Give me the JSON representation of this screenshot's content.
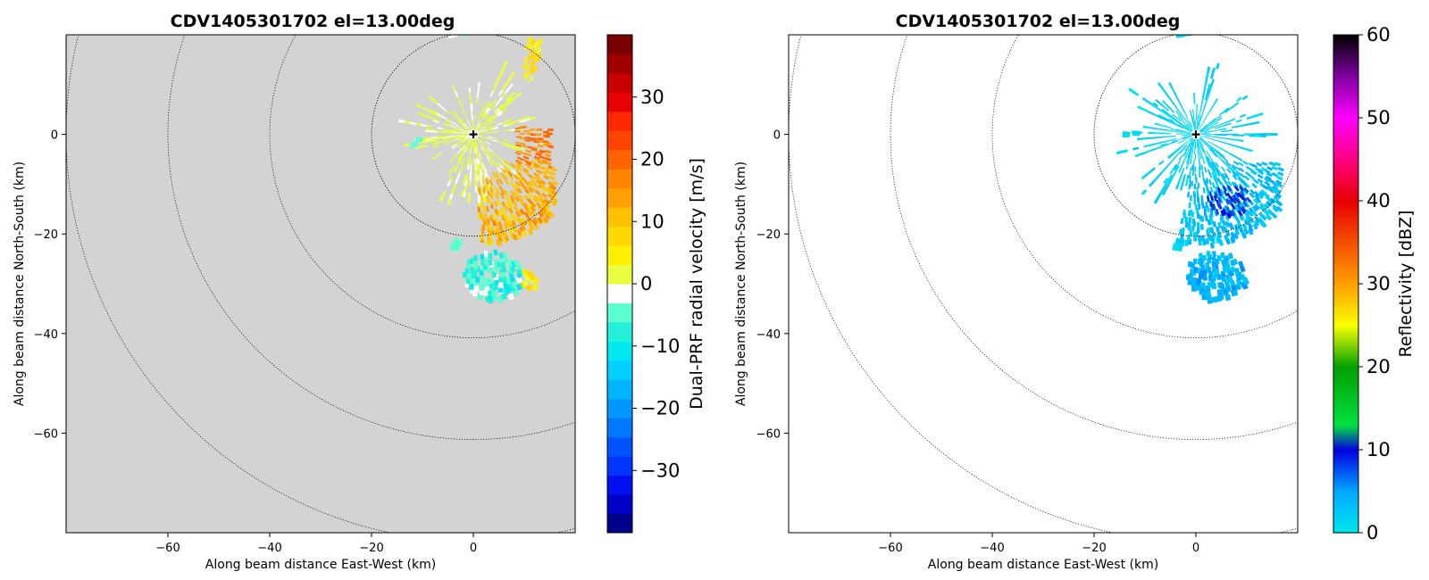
{
  "chart_data": [
    {
      "type": "heatmap",
      "title": "CDV1405301702 el=13.00deg",
      "xlabel": "Along beam distance East-West (km)",
      "ylabel": "Along beam distance North-South (km)",
      "xlim": [
        -80,
        20
      ],
      "ylim": [
        -80,
        20
      ],
      "xticks": [
        -60,
        -40,
        -20,
        0
      ],
      "yticks": [
        0,
        -20,
        -40,
        -60
      ],
      "background": "#d3d3d3",
      "range_rings_km": [
        20,
        40,
        60,
        80
      ],
      "radar_location": [
        0,
        0
      ],
      "colorbar": {
        "label": "Dual-PRF radial velocity [m/s]",
        "min": -40,
        "max": 40,
        "ticks": [
          30,
          20,
          10,
          0,
          -10,
          -20,
          -30
        ],
        "colors": [
          "#00008b",
          "#0000c8",
          "#0010f0",
          "#0034ff",
          "#0054ff",
          "#0078ff",
          "#0098ff",
          "#00b4ff",
          "#00d0ff",
          "#00e8f0",
          "#22f0d8",
          "#5cffd0",
          "#ffffff",
          "#e8ff40",
          "#fff000",
          "#ffd800",
          "#ffc000",
          "#ffa000",
          "#ff8400",
          "#ff6400",
          "#ff4400",
          "#ff2800",
          "#e80000",
          "#c80000",
          "#a00000",
          "#780000"
        ]
      },
      "features": [
        {
          "name": "south-east arc",
          "x_km": [
            0,
            16
          ],
          "y_km": [
            -21,
            -5
          ],
          "value_ms": 12
        },
        {
          "name": "east band",
          "x_km": [
            8,
            15
          ],
          "y_km": [
            -6,
            2
          ],
          "value_ms": 17
        },
        {
          "name": "north-east streak",
          "x_km": [
            10,
            13
          ],
          "y_km": [
            11,
            19
          ],
          "value_ms": 5
        },
        {
          "name": "near-radar clutter",
          "x_km": [
            -10,
            12
          ],
          "y_km": [
            -10,
            14
          ],
          "value_ms": 0
        },
        {
          "name": "southern cell",
          "x_km": [
            -2,
            9
          ],
          "y_km": [
            -33,
            -23
          ],
          "value_ms": -6
        },
        {
          "name": "southern yellow patch",
          "x_km": [
            10,
            12
          ],
          "y_km": [
            -30,
            -27
          ],
          "value_ms": 4
        }
      ]
    },
    {
      "type": "heatmap",
      "title": "CDV1405301702 el=13.00deg",
      "xlabel": "Along beam distance East-West (km)",
      "ylabel": "Along beam distance North-South (km)",
      "xlim": [
        -80,
        20
      ],
      "ylim": [
        -80,
        20
      ],
      "xticks": [
        -60,
        -40,
        -20,
        0
      ],
      "yticks": [
        0,
        -20,
        -40,
        -60
      ],
      "background": "#ffffff",
      "range_rings_km": [
        20,
        40,
        60,
        80
      ],
      "radar_location": [
        0,
        0
      ],
      "colorbar": {
        "label": "Reflectivity [dBZ]",
        "min": 0,
        "max": 60,
        "ticks": [
          60,
          50,
          40,
          30,
          20,
          10,
          0
        ],
        "stops": [
          {
            "v": 0,
            "c": "#00e8ec"
          },
          {
            "v": 5,
            "c": "#00a8ff"
          },
          {
            "v": 10,
            "c": "#0000e0"
          },
          {
            "v": 13,
            "c": "#00e040"
          },
          {
            "v": 20,
            "c": "#00a000"
          },
          {
            "v": 25,
            "c": "#f8ff00"
          },
          {
            "v": 30,
            "c": "#ffa000"
          },
          {
            "v": 40,
            "c": "#e80000"
          },
          {
            "v": 45,
            "c": "#ff0080"
          },
          {
            "v": 50,
            "c": "#ff00ff"
          },
          {
            "v": 55,
            "c": "#8000a0"
          },
          {
            "v": 60,
            "c": "#000000"
          }
        ]
      },
      "features": [
        {
          "name": "near-radar echoes",
          "x_km": [
            -14,
            15
          ],
          "y_km": [
            -10,
            12
          ],
          "value_dbz": 2
        },
        {
          "name": "south-east band",
          "x_km": [
            -3,
            16
          ],
          "y_km": [
            -22,
            -5
          ],
          "value_dbz": 3
        },
        {
          "name": "embedded core",
          "x_km": [
            2,
            11
          ],
          "y_km": [
            -16,
            -10
          ],
          "value_dbz": 9
        },
        {
          "name": "southern cell",
          "x_km": [
            -2,
            12
          ],
          "y_km": [
            -33,
            -23
          ],
          "value_dbz": 4
        }
      ]
    }
  ]
}
